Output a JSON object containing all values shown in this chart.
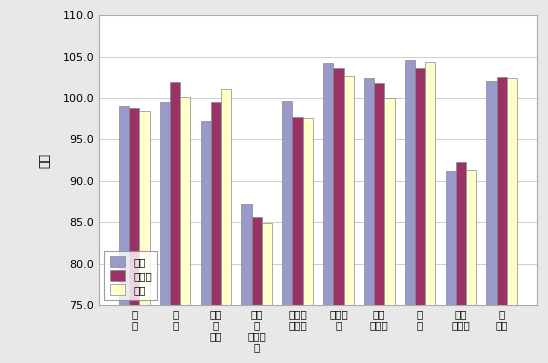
{
  "categories": [
    "食料",
    "住居",
    "光熱・水道",
    "家具・家事用品",
    "被服及び履物",
    "保健医療",
    "交通・通信",
    "教育",
    "教養・娯楽",
    "諸雑費"
  ],
  "series": {
    "津市": [
      99.0,
      99.5,
      97.2,
      87.2,
      99.7,
      104.2,
      102.4,
      104.6,
      91.2,
      102.1
    ],
    "三重県": [
      98.8,
      101.9,
      99.5,
      85.7,
      97.7,
      103.6,
      101.8,
      103.6,
      92.3,
      102.5
    ],
    "全国": [
      98.4,
      100.1,
      101.1,
      84.9,
      97.6,
      102.7,
      100.0,
      104.3,
      91.3,
      102.4
    ]
  },
  "colors": {
    "津市": "#9999cc",
    "三重県": "#993366",
    "全国": "#ffffcc"
  },
  "ylim": [
    75.0,
    110.0
  ],
  "yticks": [
    75.0,
    80.0,
    85.0,
    90.0,
    95.0,
    100.0,
    105.0,
    110.0
  ],
  "ylabel": "指数",
  "legend_order": [
    "津市",
    "三重県",
    "全国"
  ],
  "x_labels_vertical": [
    [
      "食",
      "料"
    ],
    [
      "住",
      "居"
    ],
    [
      "光熱",
      "・",
      "水道"
    ],
    [
      "家具",
      "・",
      "家事用",
      "品"
    ],
    [
      "被服及",
      "び履物"
    ],
    [
      "保健医",
      "療"
    ],
    [
      "交通",
      "・通信"
    ],
    [
      "教",
      "育"
    ],
    [
      "教養",
      "・娯楽"
    ],
    [
      "諸",
      "雑費"
    ]
  ]
}
